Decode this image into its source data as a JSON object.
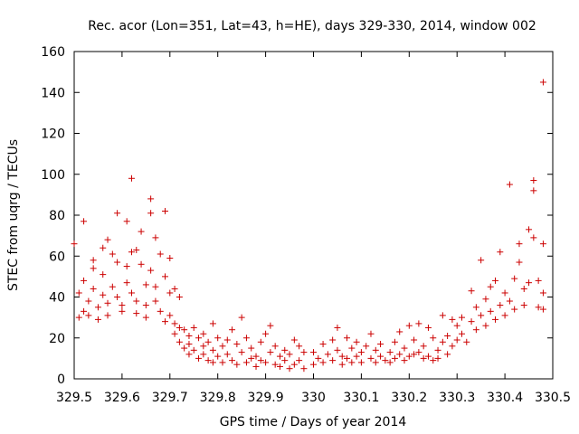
{
  "chart_data": {
    "type": "scatter",
    "title": "Rec. acor (Lon=351, Lat=43, h=HE), days 329-330, 2014, window 002",
    "xlabel": "GPS time / Days of year 2014",
    "ylabel": "STEC from uqrg / TECUs",
    "xlim": [
      329.5,
      330.5
    ],
    "ylim": [
      0,
      160
    ],
    "xticks": [
      329.5,
      329.6,
      329.7,
      329.8,
      329.9,
      330,
      330.1,
      330.2,
      330.3,
      330.4,
      330.5
    ],
    "xtick_labels": [
      "329.5",
      "329.6",
      "329.7",
      "329.8",
      "329.9",
      "330",
      "330.1",
      "330.2",
      "330.3",
      "330.4",
      "330.5"
    ],
    "yticks": [
      0,
      20,
      40,
      60,
      80,
      100,
      120,
      140,
      160
    ],
    "ytick_labels": [
      "0",
      "20",
      "40",
      "60",
      "80",
      "100",
      "120",
      "140",
      "160"
    ],
    "grid": false,
    "marker": "+",
    "marker_color": "#cc0000",
    "points": [
      [
        329.5,
        66
      ],
      [
        329.51,
        30
      ],
      [
        329.51,
        42
      ],
      [
        329.52,
        77
      ],
      [
        329.52,
        33
      ],
      [
        329.52,
        48
      ],
      [
        329.53,
        31
      ],
      [
        329.53,
        38
      ],
      [
        329.54,
        54
      ],
      [
        329.54,
        58
      ],
      [
        329.54,
        44
      ],
      [
        329.55,
        35
      ],
      [
        329.55,
        29
      ],
      [
        329.56,
        64
      ],
      [
        329.56,
        51
      ],
      [
        329.56,
        41
      ],
      [
        329.57,
        68
      ],
      [
        329.57,
        37
      ],
      [
        329.57,
        31
      ],
      [
        329.58,
        61
      ],
      [
        329.58,
        45
      ],
      [
        329.59,
        81
      ],
      [
        329.59,
        57
      ],
      [
        329.59,
        40
      ],
      [
        329.6,
        33
      ],
      [
        329.6,
        36
      ],
      [
        329.61,
        77
      ],
      [
        329.61,
        55
      ],
      [
        329.61,
        47
      ],
      [
        329.62,
        98
      ],
      [
        329.62,
        62
      ],
      [
        329.62,
        42
      ],
      [
        329.63,
        63
      ],
      [
        329.63,
        38
      ],
      [
        329.63,
        32
      ],
      [
        329.64,
        72
      ],
      [
        329.64,
        56
      ],
      [
        329.65,
        46
      ],
      [
        329.65,
        36
      ],
      [
        329.65,
        30
      ],
      [
        329.66,
        88
      ],
      [
        329.66,
        81
      ],
      [
        329.66,
        53
      ],
      [
        329.67,
        69
      ],
      [
        329.67,
        45
      ],
      [
        329.67,
        38
      ],
      [
        329.68,
        61
      ],
      [
        329.68,
        33
      ],
      [
        329.69,
        82
      ],
      [
        329.69,
        50
      ],
      [
        329.69,
        28
      ],
      [
        329.7,
        59
      ],
      [
        329.7,
        42
      ],
      [
        329.7,
        31
      ],
      [
        329.71,
        44
      ],
      [
        329.71,
        27
      ],
      [
        329.71,
        22
      ],
      [
        329.72,
        40
      ],
      [
        329.72,
        25
      ],
      [
        329.72,
        18
      ],
      [
        329.73,
        24
      ],
      [
        329.73,
        15
      ],
      [
        329.74,
        21
      ],
      [
        329.74,
        17
      ],
      [
        329.74,
        12
      ],
      [
        329.75,
        25
      ],
      [
        329.75,
        14
      ],
      [
        329.76,
        20
      ],
      [
        329.76,
        10
      ],
      [
        329.77,
        22
      ],
      [
        329.77,
        16
      ],
      [
        329.77,
        12
      ],
      [
        329.78,
        18
      ],
      [
        329.78,
        9
      ],
      [
        329.79,
        27
      ],
      [
        329.79,
        14
      ],
      [
        329.79,
        8
      ],
      [
        329.8,
        20
      ],
      [
        329.8,
        11
      ],
      [
        329.81,
        16
      ],
      [
        329.81,
        8
      ],
      [
        329.82,
        19
      ],
      [
        329.82,
        12
      ],
      [
        329.83,
        24
      ],
      [
        329.83,
        9
      ],
      [
        329.84,
        17
      ],
      [
        329.84,
        7
      ],
      [
        329.85,
        30
      ],
      [
        329.85,
        13
      ],
      [
        329.86,
        20
      ],
      [
        329.86,
        8
      ],
      [
        329.87,
        15
      ],
      [
        329.87,
        10
      ],
      [
        329.88,
        11
      ],
      [
        329.88,
        6
      ],
      [
        329.89,
        18
      ],
      [
        329.89,
        9
      ],
      [
        329.9,
        22
      ],
      [
        329.9,
        8
      ],
      [
        329.91,
        26
      ],
      [
        329.91,
        13
      ],
      [
        329.92,
        16
      ],
      [
        329.92,
        7
      ],
      [
        329.93,
        11
      ],
      [
        329.93,
        6
      ],
      [
        329.94,
        14
      ],
      [
        329.94,
        9
      ],
      [
        329.95,
        12
      ],
      [
        329.95,
        5
      ],
      [
        329.96,
        19
      ],
      [
        329.96,
        7
      ],
      [
        329.97,
        16
      ],
      [
        329.97,
        9
      ],
      [
        329.98,
        13
      ],
      [
        329.98,
        5
      ],
      [
        330.0,
        13
      ],
      [
        330.0,
        7
      ],
      [
        330.01,
        10
      ],
      [
        330.02,
        17
      ],
      [
        330.02,
        8
      ],
      [
        330.03,
        12
      ],
      [
        330.04,
        19
      ],
      [
        330.04,
        9
      ],
      [
        330.05,
        25
      ],
      [
        330.05,
        14
      ],
      [
        330.06,
        11
      ],
      [
        330.06,
        7
      ],
      [
        330.07,
        20
      ],
      [
        330.07,
        10
      ],
      [
        330.08,
        15
      ],
      [
        330.08,
        8
      ],
      [
        330.09,
        18
      ],
      [
        330.09,
        11
      ],
      [
        330.1,
        13
      ],
      [
        330.1,
        8
      ],
      [
        330.11,
        16
      ],
      [
        330.12,
        22
      ],
      [
        330.12,
        10
      ],
      [
        330.13,
        14
      ],
      [
        330.13,
        8
      ],
      [
        330.14,
        17
      ],
      [
        330.14,
        11
      ],
      [
        330.15,
        9
      ],
      [
        330.16,
        13
      ],
      [
        330.16,
        8
      ],
      [
        330.17,
        18
      ],
      [
        330.17,
        10
      ],
      [
        330.18,
        23
      ],
      [
        330.18,
        12
      ],
      [
        330.19,
        15
      ],
      [
        330.19,
        9
      ],
      [
        330.2,
        26
      ],
      [
        330.2,
        11
      ],
      [
        330.21,
        19
      ],
      [
        330.21,
        12
      ],
      [
        330.22,
        27
      ],
      [
        330.22,
        13
      ],
      [
        330.23,
        16
      ],
      [
        330.23,
        10
      ],
      [
        330.24,
        25
      ],
      [
        330.24,
        11
      ],
      [
        330.25,
        20
      ],
      [
        330.25,
        9
      ],
      [
        330.26,
        14
      ],
      [
        330.26,
        10
      ],
      [
        330.27,
        31
      ],
      [
        330.27,
        18
      ],
      [
        330.28,
        21
      ],
      [
        330.28,
        12
      ],
      [
        330.29,
        29
      ],
      [
        330.29,
        16
      ],
      [
        330.3,
        26
      ],
      [
        330.3,
        19
      ],
      [
        330.31,
        30
      ],
      [
        330.31,
        22
      ],
      [
        330.32,
        18
      ],
      [
        330.33,
        43
      ],
      [
        330.33,
        28
      ],
      [
        330.34,
        35
      ],
      [
        330.34,
        24
      ],
      [
        330.35,
        58
      ],
      [
        330.35,
        31
      ],
      [
        330.36,
        39
      ],
      [
        330.36,
        26
      ],
      [
        330.37,
        45
      ],
      [
        330.37,
        33
      ],
      [
        330.38,
        48
      ],
      [
        330.38,
        29
      ],
      [
        330.39,
        62
      ],
      [
        330.39,
        36
      ],
      [
        330.4,
        42
      ],
      [
        330.4,
        31
      ],
      [
        330.41,
        95
      ],
      [
        330.41,
        38
      ],
      [
        330.42,
        49
      ],
      [
        330.42,
        34
      ],
      [
        330.43,
        66
      ],
      [
        330.43,
        57
      ],
      [
        330.44,
        44
      ],
      [
        330.44,
        36
      ],
      [
        330.45,
        73
      ],
      [
        330.45,
        47
      ],
      [
        330.46,
        97
      ],
      [
        330.46,
        92
      ],
      [
        330.46,
        69
      ],
      [
        330.47,
        48
      ],
      [
        330.47,
        35
      ],
      [
        330.48,
        145
      ],
      [
        330.48,
        66
      ],
      [
        330.48,
        42
      ],
      [
        330.48,
        34
      ]
    ]
  }
}
